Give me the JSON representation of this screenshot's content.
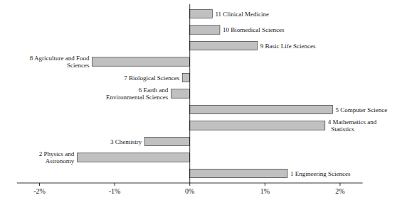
{
  "chart_data": {
    "type": "bar",
    "orientation": "horizontal",
    "categories": [
      "1 Engineering Sciences",
      "2 Physics and\n  Astronomy",
      "3 Chemistry",
      "4 Mathematics and\n  Statistics",
      "5 Computer Science",
      "6 Earth and\n  Environmental Sciences",
      "7 Biological Sciences",
      "8 Agriculture and Food\n  Sciences",
      "9 Basic Life Sciences",
      "10 Biomedical Sciences",
      "11 Clinical Medicine"
    ],
    "values": [
      1.3,
      -1.5,
      -0.6,
      1.8,
      1.9,
      -0.25,
      -0.1,
      -1.3,
      0.9,
      0.4,
      0.3
    ],
    "color": "#c0c0c0",
    "xlim": [
      -2.3,
      2.3
    ],
    "xticks": [
      {
        "value": -2,
        "label": "-2%"
      },
      {
        "value": -1,
        "label": "-1%"
      },
      {
        "value": 0,
        "label": "0%"
      },
      {
        "value": 1,
        "label": "1%"
      },
      {
        "value": 2,
        "label": "2%"
      }
    ],
    "grid": false,
    "tick_labels": "x"
  }
}
